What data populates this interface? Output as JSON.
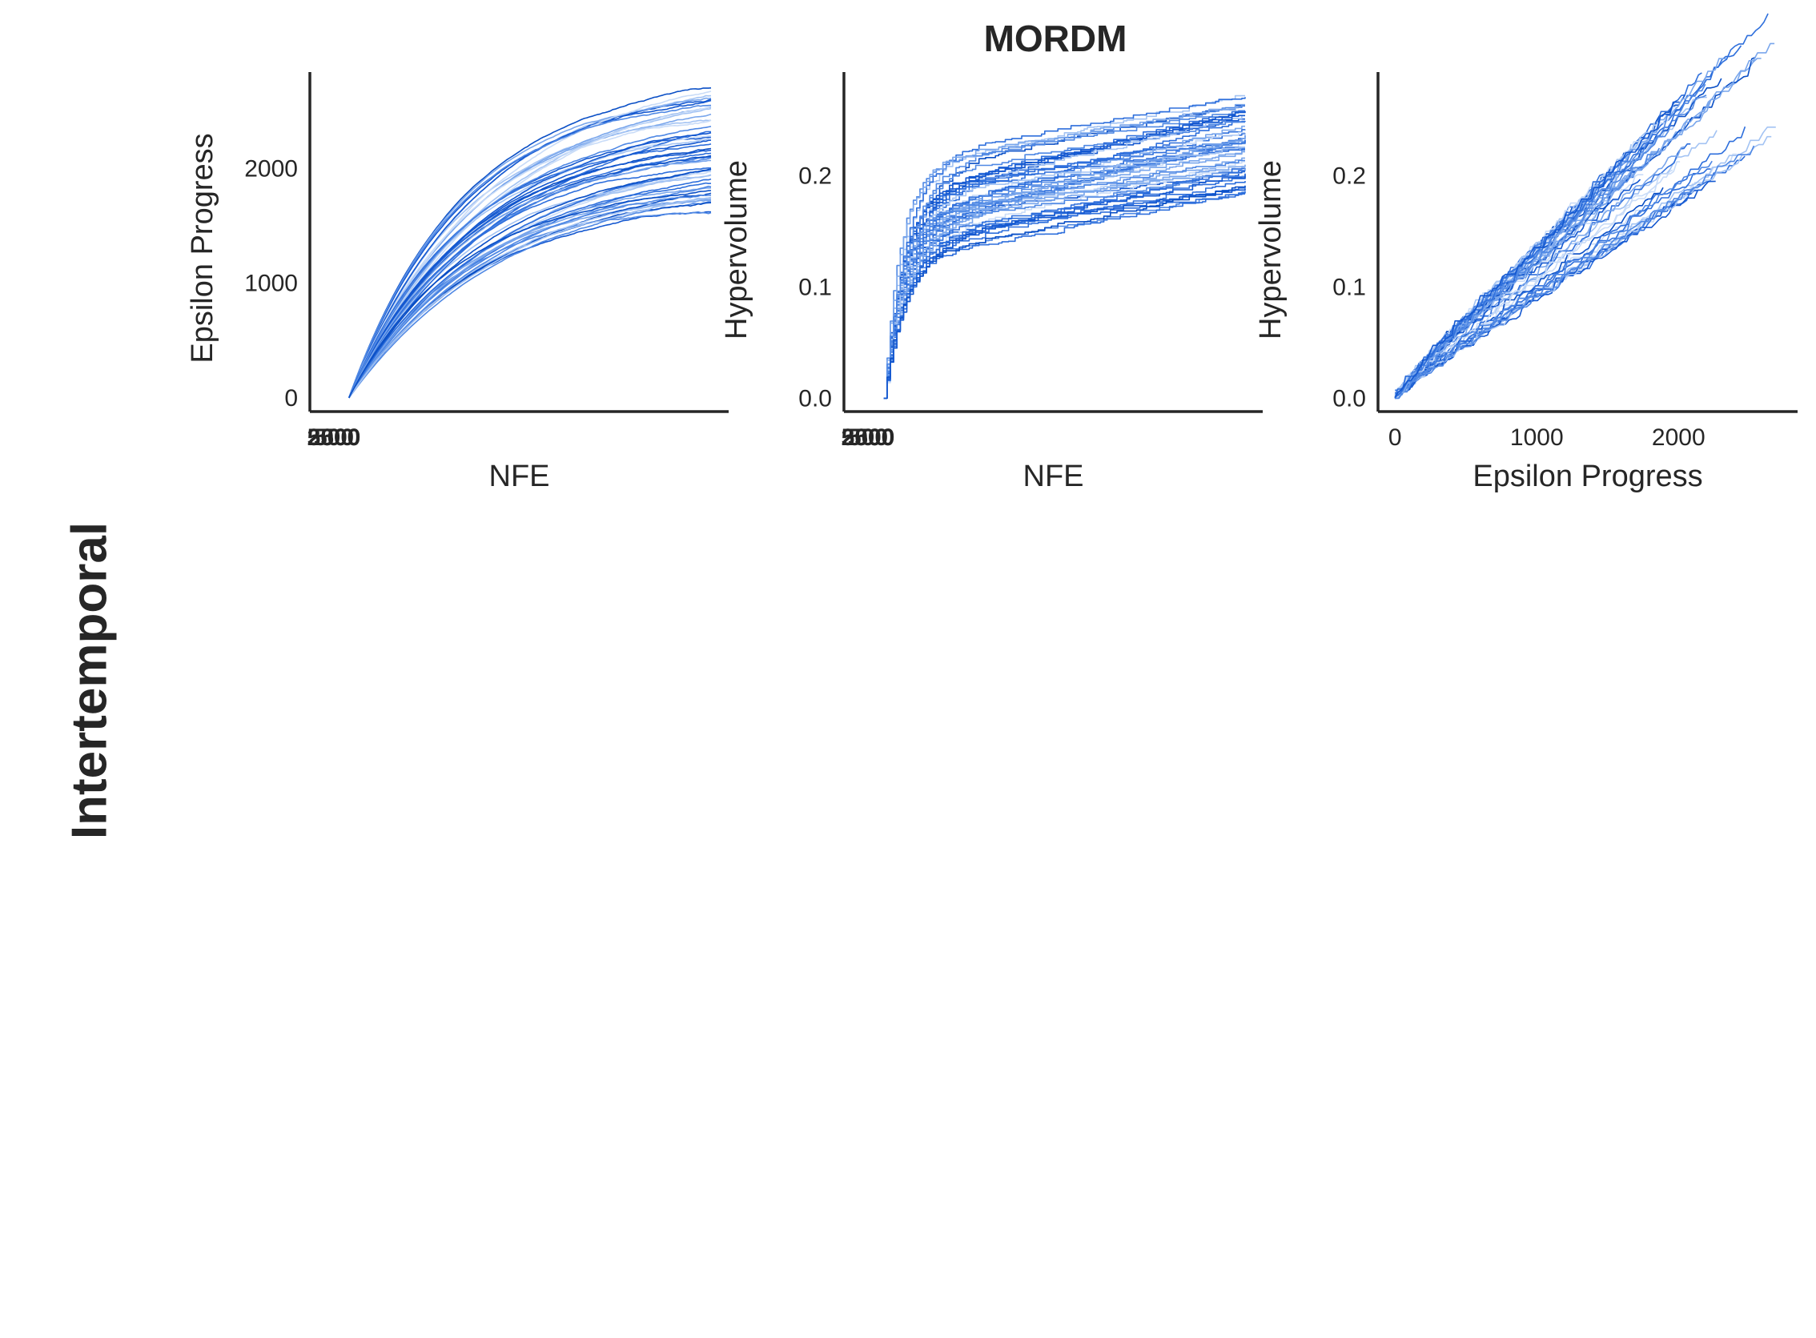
{
  "figure": {
    "title": "MORDM",
    "row_label": "Intertemporal"
  },
  "colors": {
    "axis": "#262626",
    "series_palette": [
      "#0a4fc6",
      "#1458d0",
      "#2e6fdc",
      "#4f88e4",
      "#79a6ec",
      "#a3c3f3",
      "#c9dcf8"
    ]
  },
  "chart_data": [
    {
      "type": "line",
      "title": "",
      "xlabel": "NFE",
      "ylabel": "Epsilon Progress",
      "xlim": [
        0,
        100000
      ],
      "ylim": [
        -120,
        2840
      ],
      "x_tick_values": [
        500,
        2500,
        5000
      ],
      "x_tick_labels": [
        "500",
        "2500",
        "5000"
      ],
      "y_tick_values": [
        0,
        1000,
        2000
      ],
      "y_tick_labels": [
        "0",
        "1000",
        "2000"
      ],
      "series_count": 50,
      "representative_series": [
        {
          "x": [
            5000,
            20000,
            40000,
            60000,
            80000,
            100000
          ],
          "y": [
            0,
            880,
            1320,
            1560,
            1720,
            1850
          ]
        },
        {
          "x": [
            5000,
            20000,
            40000,
            60000,
            80000,
            100000
          ],
          "y": [
            0,
            1000,
            1550,
            1900,
            2150,
            2420
          ]
        },
        {
          "x": [
            5000,
            20000,
            40000,
            60000,
            80000,
            100000
          ],
          "y": [
            0,
            800,
            1150,
            1330,
            1460,
            1580
          ]
        }
      ],
      "grid": false,
      "legend": "none"
    },
    {
      "type": "line",
      "title": "",
      "xlabel": "NFE",
      "ylabel": "Hypervolume",
      "xlim": [
        0,
        100000
      ],
      "ylim": [
        -0.012,
        0.293
      ],
      "x_tick_values": [
        500,
        2500,
        5000
      ],
      "x_tick_labels": [
        "500",
        "2500",
        "5000"
      ],
      "y_tick_values": [
        0.0,
        0.1,
        0.2
      ],
      "y_tick_labels": [
        "0.0",
        "0.1",
        "0.2"
      ],
      "series_count": 50,
      "representative_series": [
        {
          "x": [
            5000,
            15000,
            30000,
            50000,
            75000,
            100000
          ],
          "y": [
            0,
            0.17,
            0.2,
            0.215,
            0.23,
            0.24
          ]
        },
        {
          "x": [
            5000,
            15000,
            30000,
            50000,
            75000,
            100000
          ],
          "y": [
            0,
            0.12,
            0.15,
            0.17,
            0.18,
            0.19
          ]
        },
        {
          "x": [
            5000,
            15000,
            30000,
            50000,
            75000,
            100000
          ],
          "y": [
            0,
            0.2,
            0.22,
            0.24,
            0.255,
            0.27
          ]
        }
      ],
      "grid": false,
      "legend": "none"
    },
    {
      "type": "line",
      "title": "",
      "xlabel": "Epsilon Progress",
      "ylabel": "Hypervolume",
      "xlim": [
        -120,
        2840
      ],
      "ylim": [
        -0.012,
        0.293
      ],
      "x_tick_values": [
        0,
        1000,
        2000
      ],
      "x_tick_labels": [
        "0",
        "1000",
        "2000"
      ],
      "y_tick_values": [
        0.0,
        0.1,
        0.2
      ],
      "y_tick_labels": [
        "0.0",
        "0.1",
        "0.2"
      ],
      "series_count": 50,
      "representative_series": [
        {
          "x": [
            0,
            500,
            1000,
            1500,
            2000,
            2400
          ],
          "y": [
            0,
            0.1,
            0.15,
            0.19,
            0.22,
            0.25
          ]
        },
        {
          "x": [
            0,
            500,
            1000,
            1500,
            2000,
            2700
          ],
          "y": [
            0,
            0.12,
            0.17,
            0.21,
            0.24,
            0.28
          ]
        },
        {
          "x": [
            0,
            500,
            1000,
            1500,
            1800
          ],
          "y": [
            0,
            0.08,
            0.13,
            0.16,
            0.18
          ]
        }
      ],
      "grid": false,
      "legend": "none"
    }
  ]
}
